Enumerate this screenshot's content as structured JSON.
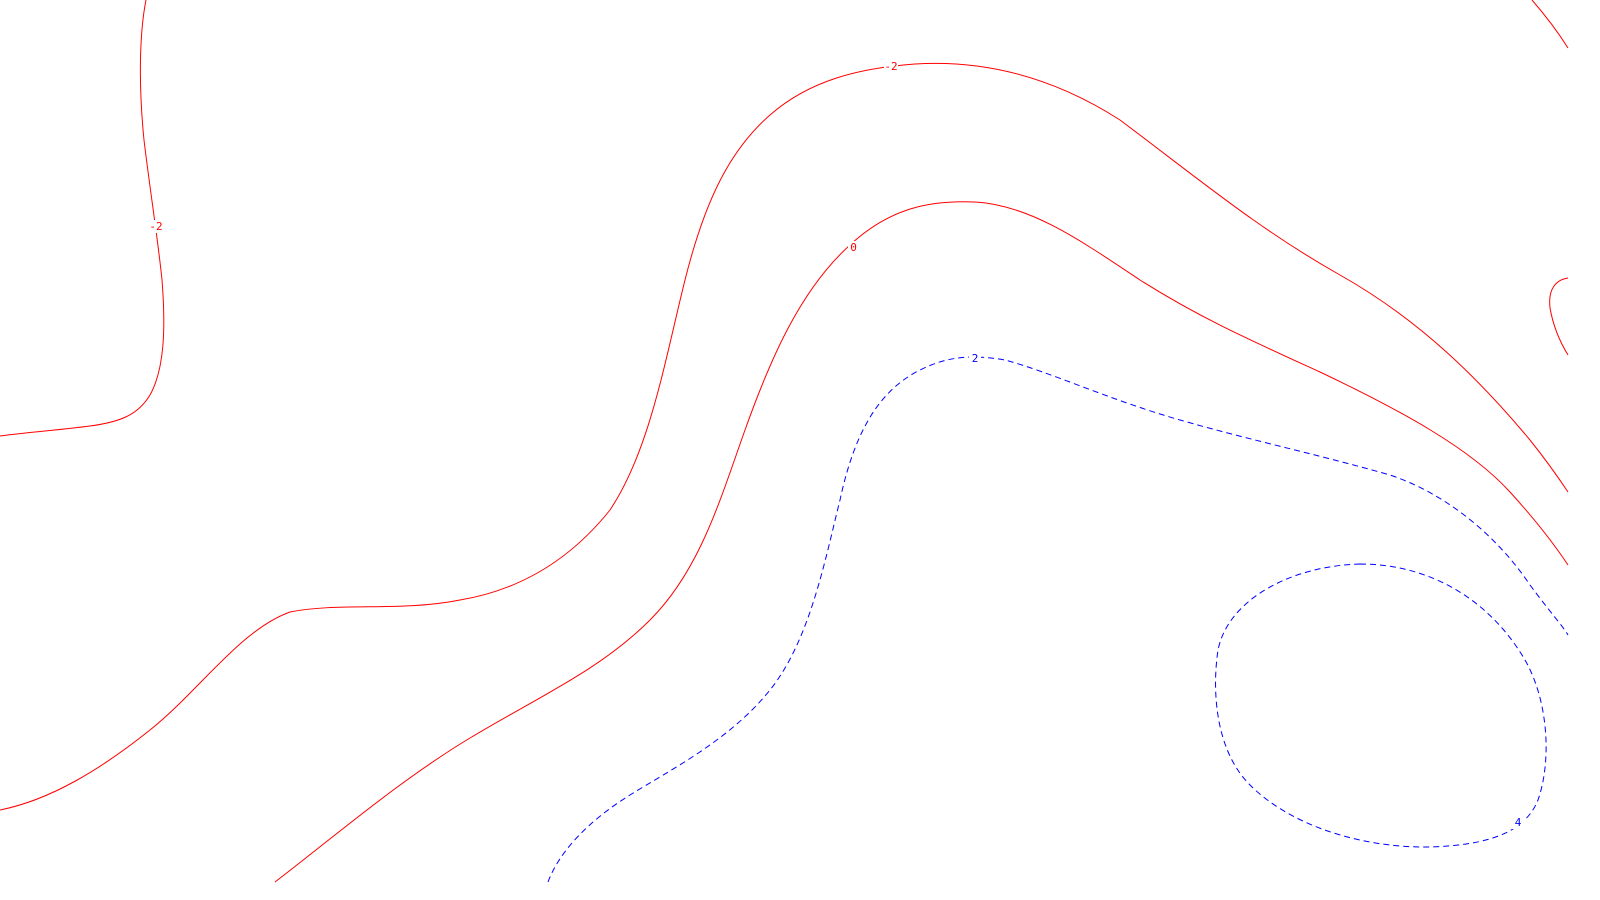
{
  "map": {
    "background_color": "#ffffff",
    "contours": [
      {
        "id": "neg2-west",
        "level": "-2",
        "color": "#ff0000",
        "style": "solid"
      },
      {
        "id": "neg2-main",
        "level": "-2",
        "color": "#ff0000",
        "style": "solid"
      },
      {
        "id": "zero",
        "level": "0",
        "color": "#ff0000",
        "style": "solid"
      },
      {
        "id": "pos2",
        "level": "2",
        "color": "#0000ff",
        "style": "dashed"
      },
      {
        "id": "pos4",
        "level": "4",
        "color": "#0000ff",
        "style": "dashed"
      },
      {
        "id": "corner-top-right",
        "level": "",
        "color": "#ff0000",
        "style": "solid"
      },
      {
        "id": "edge-right",
        "level": "",
        "color": "#ff0000",
        "style": "solid"
      }
    ],
    "labels": {
      "neg2_west": "-2",
      "neg2_main": "-2",
      "zero": "0",
      "pos2": "2",
      "pos4": "4"
    }
  }
}
